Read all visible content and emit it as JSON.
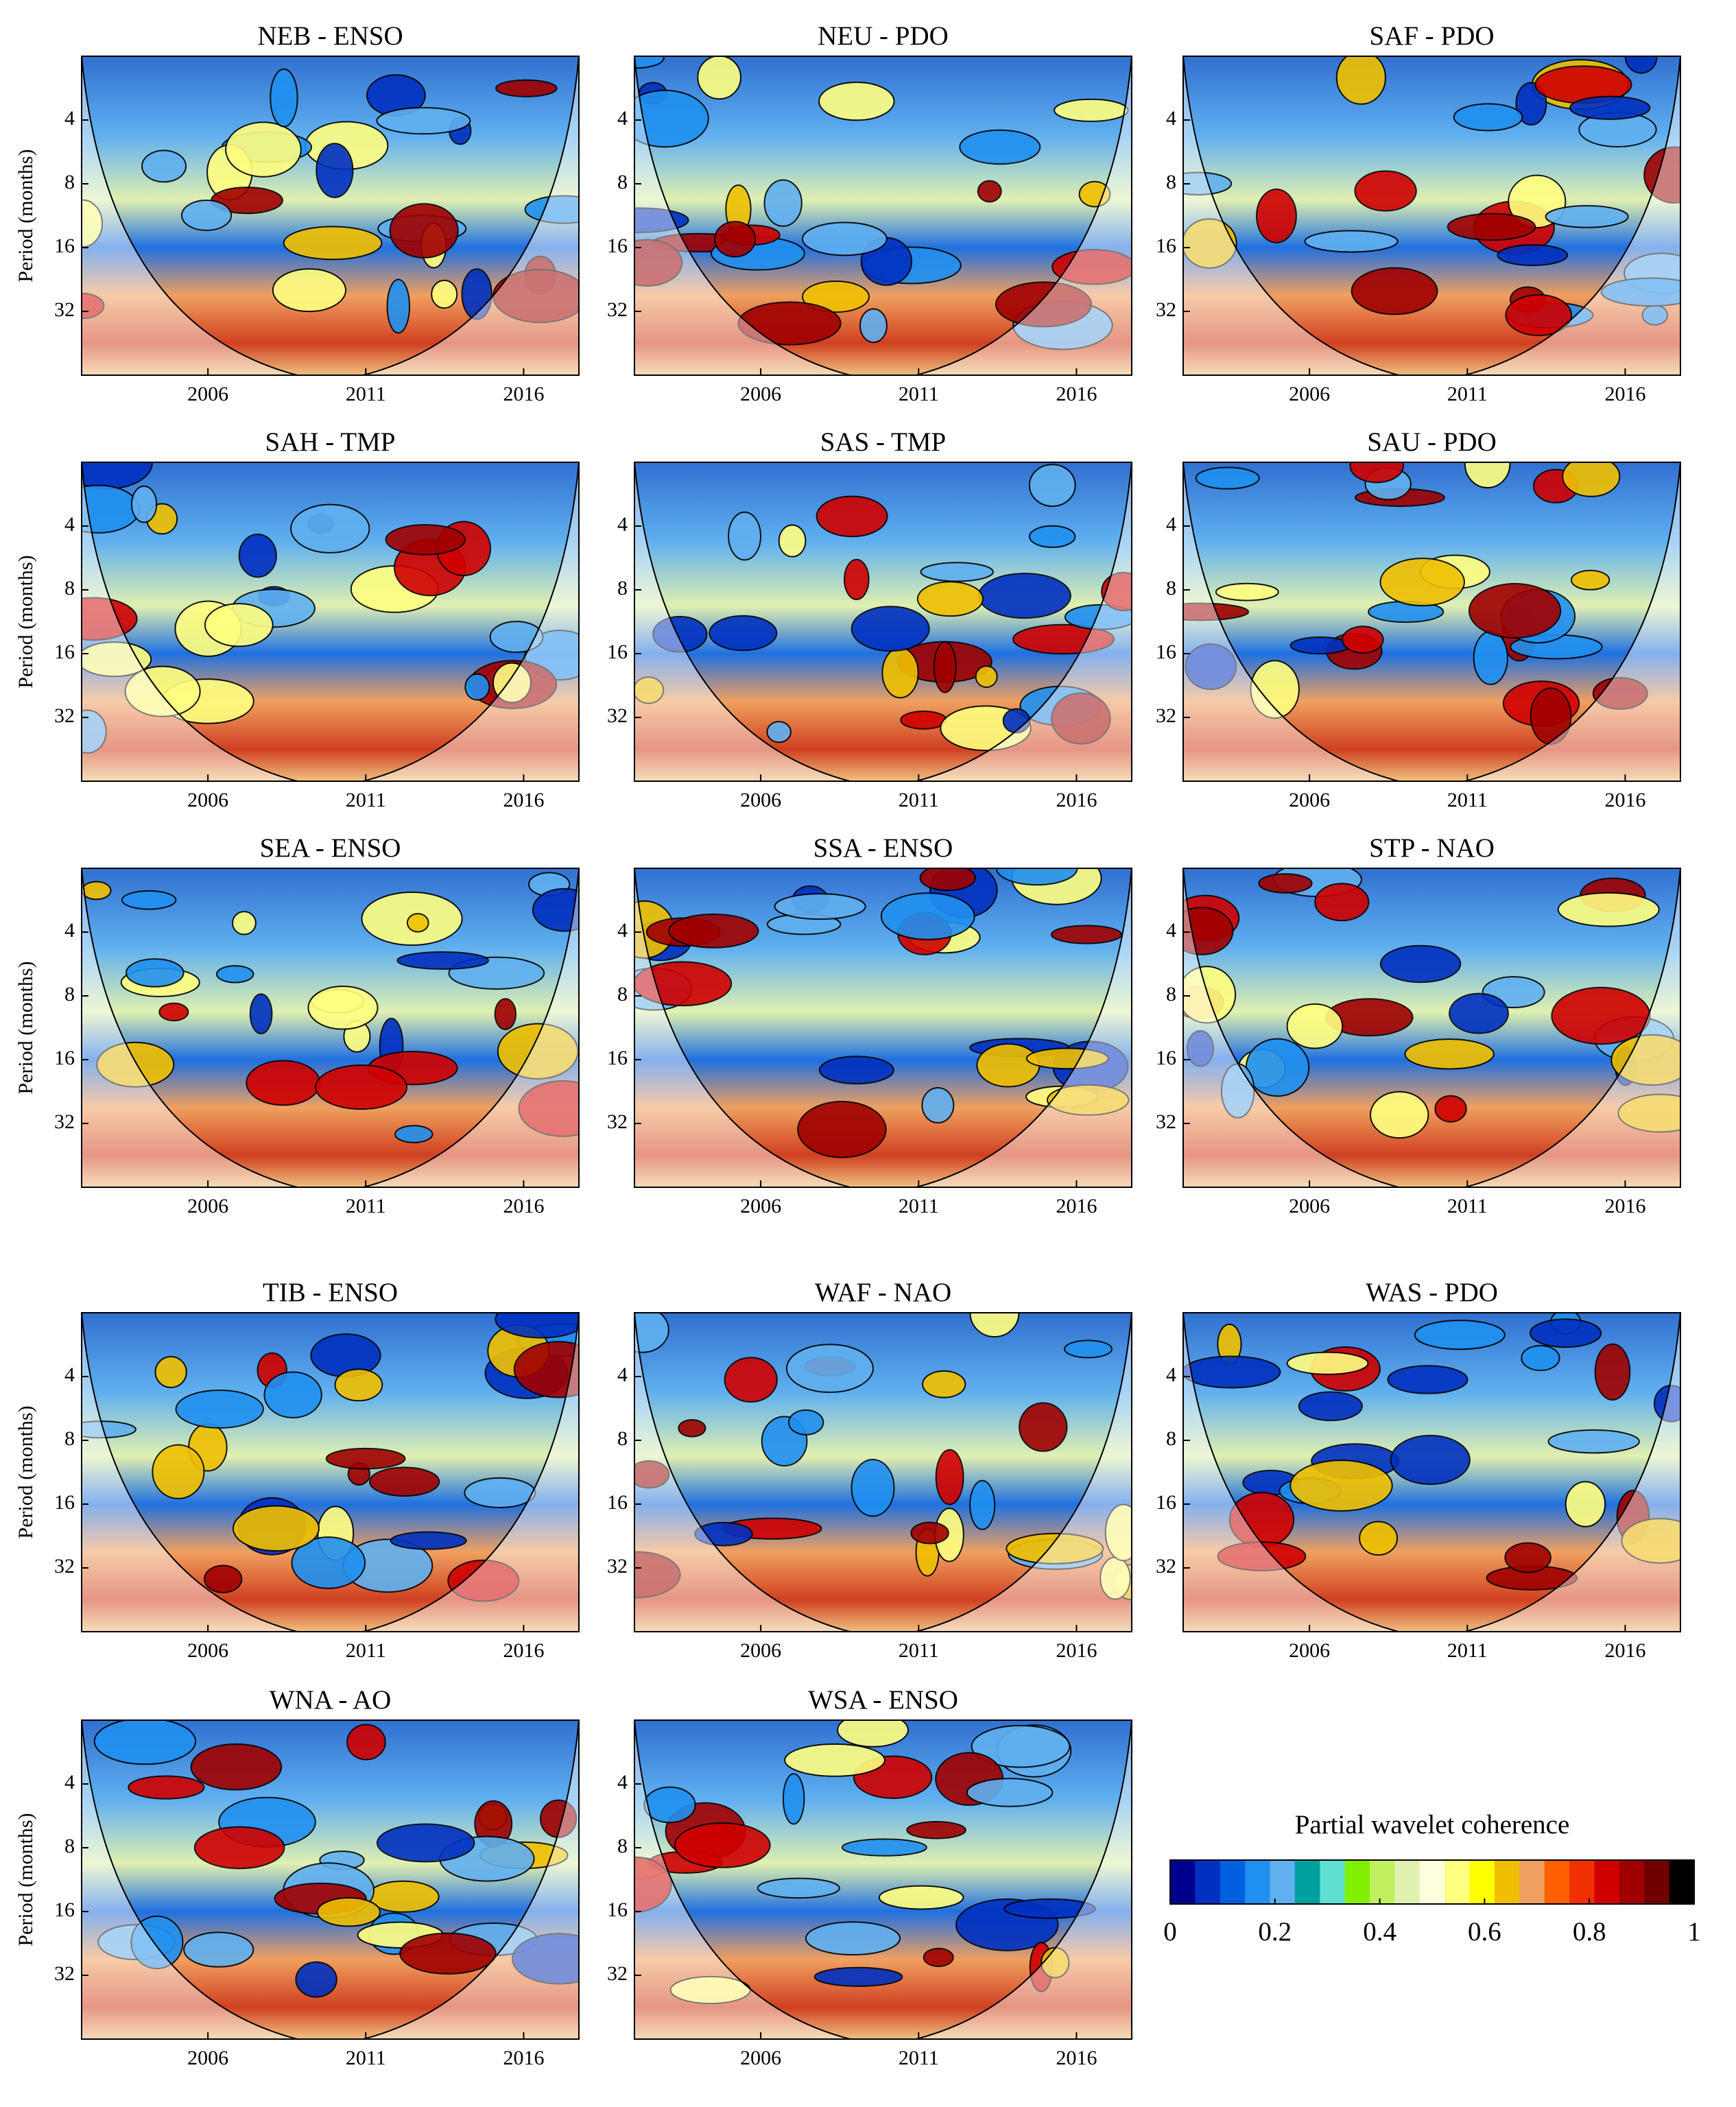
{
  "chart_data": [
    {
      "type": "heatmap",
      "title": "NEB - ENSO",
      "ylabel": "Period (months)",
      "xlim": [
        2002,
        2017.75
      ],
      "xticks": [
        2006,
        2011,
        2016
      ],
      "ylim": [
        2,
        64
      ],
      "yticks": [
        4,
        8,
        16,
        32
      ],
      "log_y": true
    },
    {
      "type": "heatmap",
      "title": "NEU - PDO",
      "xlim": [
        2002,
        2017.75
      ],
      "xticks": [
        2006,
        2011,
        2016
      ],
      "ylim": [
        2,
        64
      ],
      "yticks": [
        4,
        8,
        16,
        32
      ],
      "log_y": true
    },
    {
      "type": "heatmap",
      "title": "SAF - PDO",
      "xlim": [
        2002,
        2017.75
      ],
      "xticks": [
        2006,
        2011,
        2016
      ],
      "ylim": [
        2,
        64
      ],
      "yticks": [
        4,
        8,
        16,
        32
      ],
      "log_y": true
    },
    {
      "type": "heatmap",
      "title": "SAH - TMP",
      "ylabel": "Period (months)",
      "xlim": [
        2002,
        2017.75
      ],
      "xticks": [
        2006,
        2011,
        2016
      ],
      "ylim": [
        2,
        64
      ],
      "yticks": [
        4,
        8,
        16,
        32
      ],
      "log_y": true
    },
    {
      "type": "heatmap",
      "title": "SAS - TMP",
      "xlim": [
        2002,
        2017.75
      ],
      "xticks": [
        2006,
        2011,
        2016
      ],
      "ylim": [
        2,
        64
      ],
      "yticks": [
        4,
        8,
        16,
        32
      ],
      "log_y": true
    },
    {
      "type": "heatmap",
      "title": "SAU - PDO",
      "xlim": [
        2002,
        2017.75
      ],
      "xticks": [
        2006,
        2011,
        2016
      ],
      "ylim": [
        2,
        64
      ],
      "yticks": [
        4,
        8,
        16,
        32
      ],
      "log_y": true
    },
    {
      "type": "heatmap",
      "title": "SEA - ENSO",
      "ylabel": "Period (months)",
      "xlim": [
        2002,
        2017.75
      ],
      "xticks": [
        2006,
        2011,
        2016
      ],
      "ylim": [
        2,
        64
      ],
      "yticks": [
        4,
        8,
        16,
        32
      ],
      "log_y": true
    },
    {
      "type": "heatmap",
      "title": "SSA - ENSO",
      "xlim": [
        2002,
        2017.75
      ],
      "xticks": [
        2006,
        2011,
        2016
      ],
      "ylim": [
        2,
        64
      ],
      "yticks": [
        4,
        8,
        16,
        32
      ],
      "log_y": true
    },
    {
      "type": "heatmap",
      "title": "STP - NAO",
      "xlim": [
        2002,
        2017.75
      ],
      "xticks": [
        2006,
        2011,
        2016
      ],
      "ylim": [
        2,
        64
      ],
      "yticks": [
        4,
        8,
        16,
        32
      ],
      "log_y": true
    },
    {
      "type": "heatmap",
      "title": "TIB - ENSO",
      "ylabel": "Period (months)",
      "xlim": [
        2002,
        2017.75
      ],
      "xticks": [
        2006,
        2011,
        2016
      ],
      "ylim": [
        2,
        64
      ],
      "yticks": [
        4,
        8,
        16,
        32
      ],
      "log_y": true
    },
    {
      "type": "heatmap",
      "title": "WAF - NAO",
      "xlim": [
        2002,
        2017.75
      ],
      "xticks": [
        2006,
        2011,
        2016
      ],
      "ylim": [
        2,
        64
      ],
      "yticks": [
        4,
        8,
        16,
        32
      ],
      "log_y": true
    },
    {
      "type": "heatmap",
      "title": "WAS - PDO",
      "xlim": [
        2002,
        2017.75
      ],
      "xticks": [
        2006,
        2011,
        2016
      ],
      "ylim": [
        2,
        64
      ],
      "yticks": [
        4,
        8,
        16,
        32
      ],
      "log_y": true
    },
    {
      "type": "heatmap",
      "title": "WNA - AO",
      "ylabel": "Period (months)",
      "xlim": [
        2002,
        2017.75
      ],
      "xticks": [
        2006,
        2011,
        2016
      ],
      "ylim": [
        2,
        64
      ],
      "yticks": [
        4,
        8,
        16,
        32
      ],
      "log_y": true
    },
    {
      "type": "heatmap",
      "title": "WSA - ENSO",
      "xlim": [
        2002,
        2017.75
      ],
      "xticks": [
        2006,
        2011,
        2016
      ],
      "ylim": [
        2,
        64
      ],
      "yticks": [
        4,
        8,
        16,
        32
      ],
      "log_y": true
    }
  ],
  "colorbar": {
    "title": "Partial wavelet coherence",
    "lim": [
      0,
      1
    ],
    "ticks": [
      0,
      0.2,
      0.4,
      0.6,
      0.8,
      1
    ],
    "colors": [
      "#00008f",
      "#0030c0",
      "#0060e0",
      "#2090f0",
      "#60b0f0",
      "#00a0a0",
      "#60e0d0",
      "#80f000",
      "#c0f060",
      "#e0f0b0",
      "#ffffe0",
      "#ffff80",
      "#ffff00",
      "#f0c000",
      "#f0a060",
      "#ff6000",
      "#f03000",
      "#d00000",
      "#a00000",
      "#700000",
      "#000000"
    ]
  }
}
